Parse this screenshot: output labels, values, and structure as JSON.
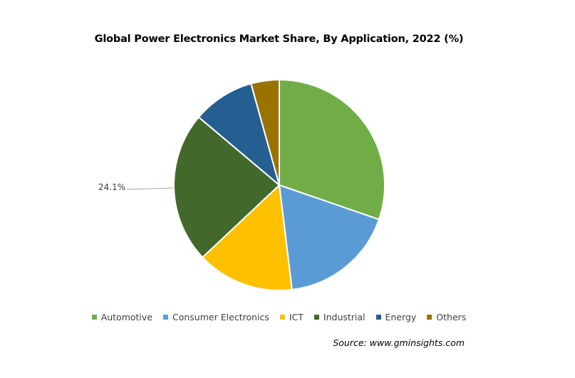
{
  "chart_data": {
    "type": "pie",
    "title": "Global Power Electronics Market Share, By Application, 2022 (%)",
    "categories": [
      "Automotive",
      "Consumer Electronics",
      "ICT",
      "Industrial",
      "Energy",
      "Others"
    ],
    "values": [
      31.5,
      18.5,
      15.5,
      24.1,
      9.9,
      4.5
    ],
    "data_labels": [
      {
        "category": "Industrial",
        "label": "24.1%"
      }
    ],
    "colors": [
      "#70ad47",
      "#5b9bd5",
      "#ffc000",
      "#43682b",
      "#255e91",
      "#997300"
    ],
    "legend_position": "bottom",
    "start_angle_deg": 0,
    "direction": "clockwise"
  },
  "source": "Source: www.gminsights.com"
}
